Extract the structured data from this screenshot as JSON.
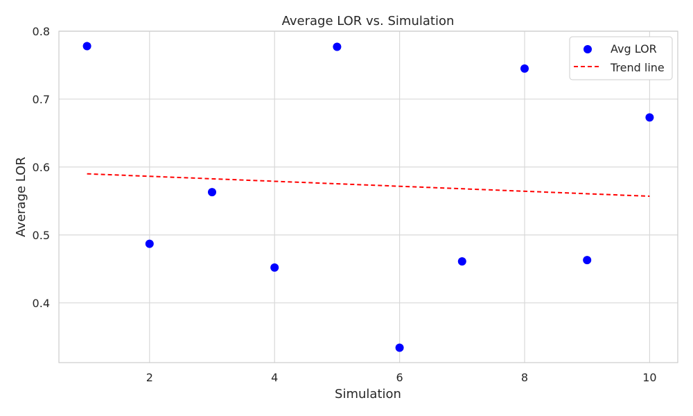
{
  "chart_data": {
    "type": "scatter",
    "title": "Average LOR vs. Simulation",
    "xlabel": "Simulation",
    "ylabel": "Average LOR",
    "xlim": [
      0.55,
      10.45
    ],
    "ylim": [
      0.312,
      0.8
    ],
    "xticks": [
      2,
      4,
      6,
      8,
      10
    ],
    "yticks": [
      0.4,
      0.5,
      0.6,
      0.7,
      0.8
    ],
    "grid": true,
    "legend_position": "top-right",
    "series": [
      {
        "name": "Avg LOR",
        "type": "scatter",
        "color": "#0000ff",
        "points": [
          {
            "x": 1,
            "y": 0.778
          },
          {
            "x": 2,
            "y": 0.487
          },
          {
            "x": 3,
            "y": 0.563
          },
          {
            "x": 4,
            "y": 0.452
          },
          {
            "x": 5,
            "y": 0.777
          },
          {
            "x": 6,
            "y": 0.334
          },
          {
            "x": 7,
            "y": 0.461
          },
          {
            "x": 8,
            "y": 0.745
          },
          {
            "x": 9,
            "y": 0.463
          },
          {
            "x": 10,
            "y": 0.673
          }
        ]
      },
      {
        "name": "Trend line",
        "type": "line",
        "style": "dashed",
        "color": "#ff0000",
        "points": [
          {
            "x": 1,
            "y": 0.59
          },
          {
            "x": 10,
            "y": 0.557
          }
        ]
      }
    ]
  }
}
